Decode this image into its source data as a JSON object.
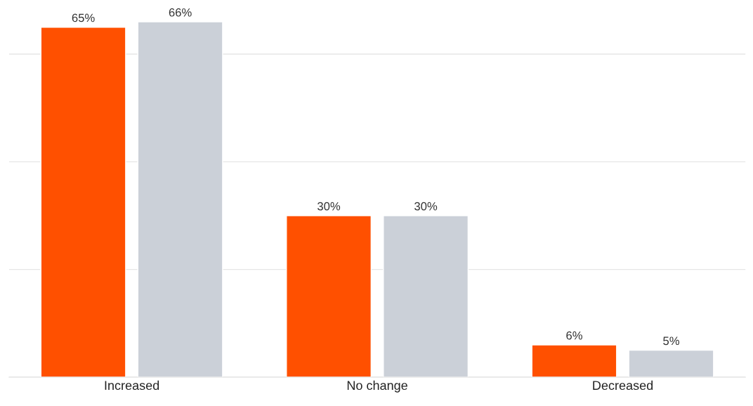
{
  "chart_data": {
    "type": "bar",
    "categories": [
      "Increased",
      "No change",
      "Decreased"
    ],
    "series": [
      {
        "color": "#ff5000",
        "values": [
          65,
          30,
          6
        ],
        "value_labels": [
          "65%",
          "30%",
          "6%"
        ]
      },
      {
        "color": "#cbd0d8",
        "values": [
          66,
          30,
          5
        ],
        "value_labels": [
          "66%",
          "30%",
          "5%"
        ]
      }
    ],
    "yticks": [
      {
        "value": 0,
        "label": null
      },
      {
        "value": 20,
        "label": null
      },
      {
        "value": 40,
        "label": null
      },
      {
        "value": 60,
        "label": null
      }
    ],
    "tick_labels": "x",
    "grid": "y",
    "legend": false
  }
}
